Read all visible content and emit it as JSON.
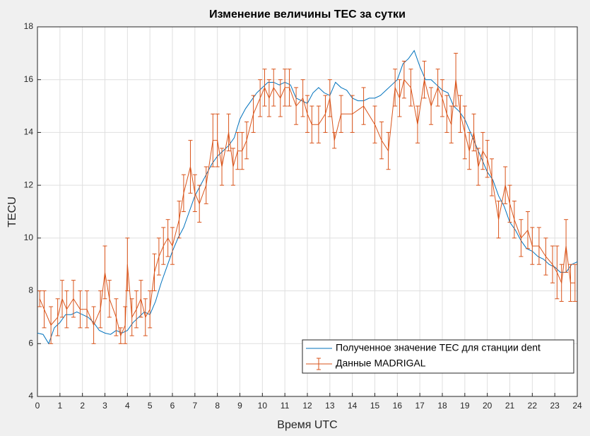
{
  "chart_data": {
    "type": "line",
    "title": "Изменение величины TEC за сутки",
    "x_label": "Время UTC",
    "y_label": "TECU",
    "xlim": [
      0,
      24
    ],
    "xticks": [
      0,
      1,
      2,
      3,
      4,
      5,
      6,
      7,
      8,
      9,
      10,
      11,
      12,
      13,
      14,
      15,
      16,
      17,
      18,
      19,
      20,
      21,
      22,
      23,
      24
    ],
    "ylim": [
      4,
      18
    ],
    "yticks": [
      4,
      6,
      8,
      10,
      12,
      14,
      16,
      18
    ],
    "grid": true,
    "legend_position": "southeast",
    "series": [
      {
        "name": "Полученное значение TEC для станции dent",
        "color": "#0072bd",
        "kind": "line",
        "x": [
          0,
          0.25,
          0.5,
          0.75,
          1,
          1.25,
          1.5,
          1.75,
          2,
          2.25,
          2.5,
          2.75,
          3,
          3.25,
          3.5,
          3.75,
          4,
          4.25,
          4.5,
          4.75,
          5,
          5.25,
          5.5,
          5.75,
          6,
          6.25,
          6.5,
          6.75,
          7,
          7.25,
          7.5,
          7.75,
          8,
          8.25,
          8.5,
          8.75,
          9,
          9.25,
          9.5,
          9.75,
          10,
          10.25,
          10.5,
          10.75,
          11,
          11.25,
          11.5,
          11.75,
          12,
          12.25,
          12.5,
          12.75,
          13,
          13.25,
          13.5,
          13.75,
          14,
          14.25,
          14.5,
          14.75,
          15,
          15.25,
          15.5,
          15.75,
          16,
          16.25,
          16.5,
          16.75,
          17,
          17.25,
          17.5,
          17.75,
          18,
          18.25,
          18.5,
          18.75,
          19,
          19.25,
          19.5,
          19.75,
          20,
          20.25,
          20.5,
          20.75,
          21,
          21.25,
          21.5,
          21.75,
          22,
          22.25,
          22.5,
          22.75,
          23,
          23.25,
          23.5,
          23.75,
          24
        ],
        "values": [
          6.4,
          6.35,
          6.0,
          6.6,
          6.8,
          7.1,
          7.1,
          7.2,
          7.1,
          7.0,
          6.8,
          6.5,
          6.4,
          6.35,
          6.5,
          6.4,
          6.5,
          6.8,
          7.0,
          7.2,
          7.1,
          7.6,
          8.3,
          8.9,
          9.5,
          10.0,
          10.4,
          11.0,
          11.6,
          12.0,
          12.4,
          12.8,
          13.1,
          13.3,
          13.5,
          13.8,
          14.5,
          14.9,
          15.2,
          15.5,
          15.7,
          15.9,
          15.9,
          15.8,
          15.9,
          15.8,
          15.3,
          15.2,
          15.1,
          15.5,
          15.7,
          15.5,
          15.4,
          15.9,
          15.7,
          15.6,
          15.3,
          15.2,
          15.2,
          15.3,
          15.3,
          15.4,
          15.6,
          15.8,
          16.0,
          16.6,
          16.8,
          17.1,
          16.5,
          16.0,
          16.0,
          15.8,
          15.6,
          15.5,
          15.0,
          14.8,
          14.5,
          14.0,
          13.5,
          13.0,
          12.5,
          12.2,
          11.6,
          11.2,
          10.6,
          10.3,
          9.9,
          9.6,
          9.5,
          9.3,
          9.2,
          9.0,
          8.9,
          8.7,
          8.7,
          9.0,
          9.1
        ]
      },
      {
        "name": "Данные MADRIGAL",
        "color": "#d95319",
        "kind": "errorbar",
        "x": [
          0.1,
          0.3,
          0.6,
          0.9,
          1.1,
          1.3,
          1.6,
          1.9,
          2.2,
          2.5,
          2.8,
          3.0,
          3.2,
          3.5,
          3.7,
          3.9,
          4.0,
          4.2,
          4.4,
          4.6,
          4.8,
          5.0,
          5.2,
          5.4,
          5.6,
          5.8,
          6.0,
          6.3,
          6.5,
          6.8,
          7.0,
          7.2,
          7.5,
          7.8,
          8.0,
          8.2,
          8.5,
          8.7,
          8.9,
          9.1,
          9.3,
          9.6,
          9.9,
          10.1,
          10.3,
          10.5,
          10.8,
          11.0,
          11.2,
          11.5,
          11.8,
          12.0,
          12.2,
          12.5,
          12.8,
          13.0,
          13.2,
          13.5,
          14.0,
          14.5,
          15.0,
          15.3,
          15.6,
          15.9,
          16.1,
          16.3,
          16.6,
          16.9,
          17.2,
          17.5,
          17.8,
          18.0,
          18.2,
          18.4,
          18.6,
          18.8,
          19.0,
          19.2,
          19.4,
          19.6,
          19.8,
          20.0,
          20.2,
          20.5,
          20.8,
          21.0,
          21.2,
          21.5,
          21.8,
          22.0,
          22.3,
          22.6,
          22.9,
          23.1,
          23.3,
          23.5,
          23.7,
          23.9
        ],
        "values": [
          7.7,
          7.3,
          6.7,
          7.0,
          7.7,
          7.3,
          7.7,
          7.3,
          7.3,
          6.7,
          7.3,
          8.7,
          7.7,
          7.0,
          6.3,
          6.7,
          9.0,
          7.0,
          7.3,
          7.7,
          7.0,
          7.3,
          8.7,
          9.3,
          9.7,
          10.0,
          9.7,
          10.7,
          11.7,
          12.7,
          11.7,
          11.3,
          12.0,
          13.7,
          13.7,
          12.7,
          14.0,
          12.7,
          13.3,
          13.3,
          13.7,
          14.7,
          15.3,
          15.7,
          15.3,
          15.7,
          15.3,
          15.7,
          15.7,
          15.0,
          15.3,
          14.7,
          14.3,
          14.3,
          14.7,
          15.3,
          13.7,
          14.7,
          14.7,
          15.0,
          14.3,
          13.7,
          13.3,
          15.7,
          15.3,
          16.0,
          15.7,
          14.3,
          16.0,
          15.0,
          15.7,
          15.3,
          14.7,
          14.3,
          16.0,
          14.7,
          14.0,
          13.3,
          14.0,
          12.7,
          13.3,
          13.0,
          12.3,
          10.7,
          12.0,
          11.3,
          10.7,
          10.0,
          10.3,
          9.7,
          9.7,
          9.3,
          9.0,
          8.7,
          8.3,
          9.7,
          8.3,
          8.3
        ],
        "errors": [
          0.3,
          0.7,
          0.7,
          0.7,
          0.7,
          0.7,
          0.7,
          0.7,
          0.7,
          0.7,
          0.7,
          1.0,
          0.7,
          0.7,
          0.3,
          0.7,
          1.0,
          0.7,
          0.7,
          0.7,
          0.7,
          0.7,
          0.7,
          0.7,
          0.7,
          0.7,
          0.7,
          0.7,
          0.7,
          1.0,
          0.7,
          0.7,
          0.7,
          1.0,
          1.0,
          0.7,
          0.7,
          0.7,
          0.7,
          0.7,
          0.7,
          0.7,
          0.7,
          0.7,
          0.7,
          0.7,
          0.7,
          0.7,
          0.7,
          0.7,
          0.7,
          0.7,
          0.7,
          0.7,
          0.7,
          0.7,
          0.3,
          0.7,
          0.7,
          0.7,
          0.7,
          0.7,
          0.7,
          0.7,
          0.7,
          0.7,
          0.7,
          0.7,
          0.7,
          0.7,
          0.7,
          0.7,
          0.7,
          0.7,
          1.0,
          0.7,
          1.0,
          0.7,
          0.7,
          0.7,
          0.7,
          0.7,
          0.7,
          0.7,
          0.7,
          0.7,
          0.7,
          0.7,
          0.7,
          0.7,
          0.7,
          0.7,
          0.7,
          1.0,
          0.7,
          1.0,
          0.7,
          0.7
        ]
      }
    ]
  }
}
